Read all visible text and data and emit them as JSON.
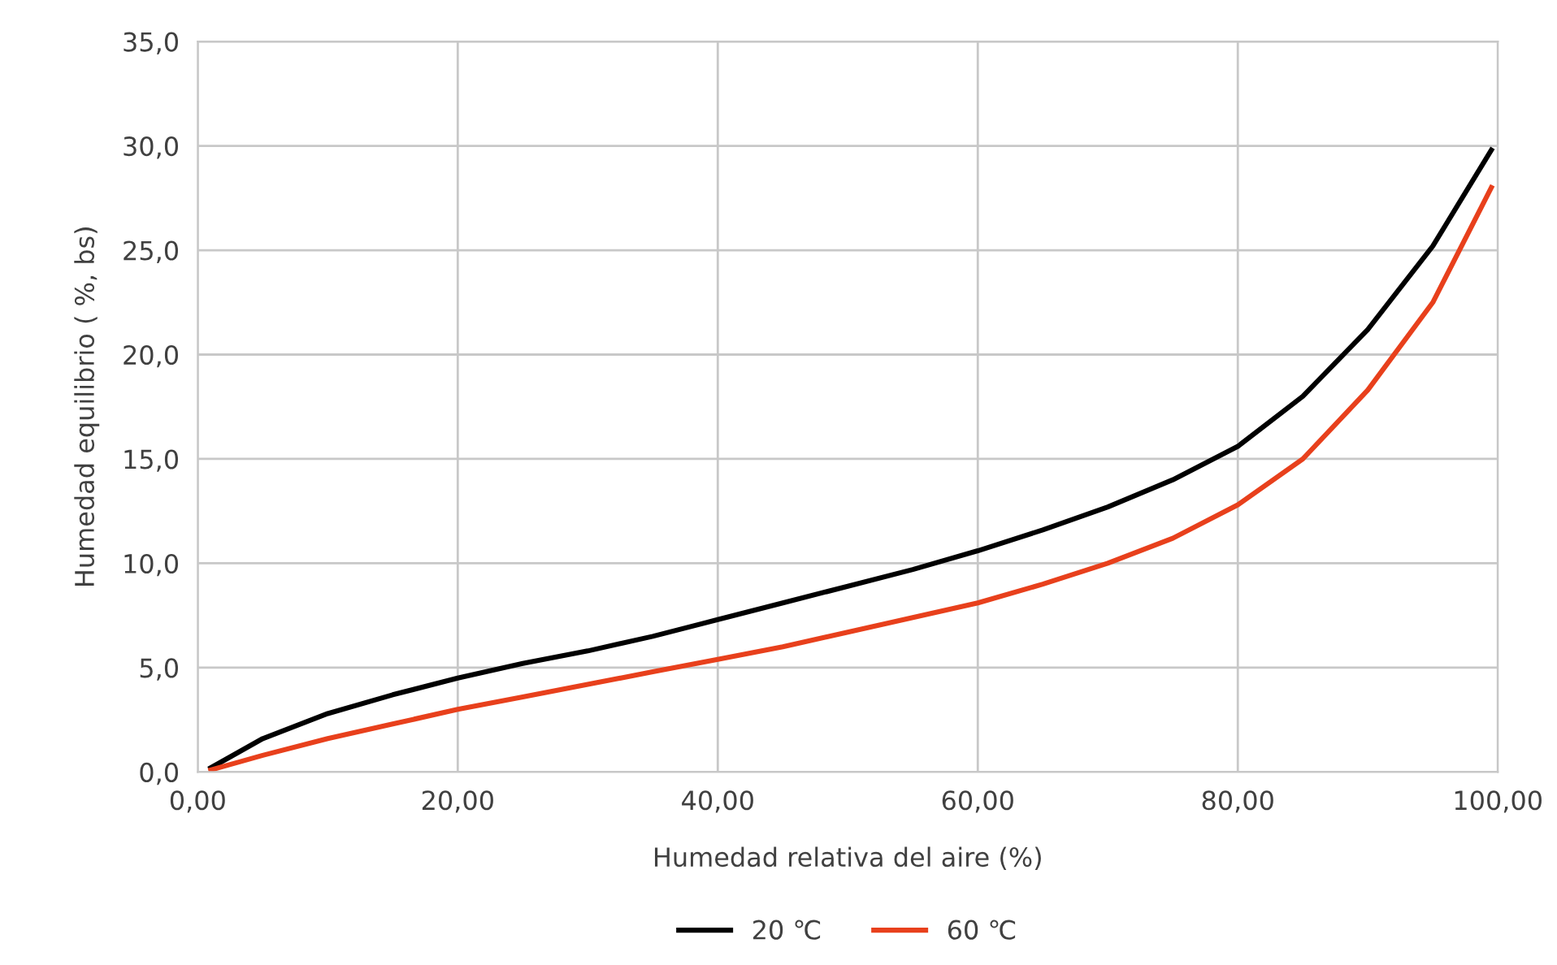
{
  "chart_data": {
    "type": "line",
    "xlabel": "Humedad relativa del aire (%)",
    "ylabel": "Humedad equilibrio ( %, bs)",
    "xlim": [
      0,
      100
    ],
    "ylim": [
      0,
      35
    ],
    "xticks": [
      {
        "value": 0,
        "label": "0,00"
      },
      {
        "value": 20,
        "label": "20,00"
      },
      {
        "value": 40,
        "label": "40,00"
      },
      {
        "value": 60,
        "label": "60,00"
      },
      {
        "value": 80,
        "label": "80,00"
      },
      {
        "value": 100,
        "label": "100,00"
      }
    ],
    "yticks": [
      {
        "value": 0,
        "label": "0,0"
      },
      {
        "value": 5,
        "label": "5,0"
      },
      {
        "value": 10,
        "label": "10,0"
      },
      {
        "value": 15,
        "label": "15,0"
      },
      {
        "value": 20,
        "label": "20,0"
      },
      {
        "value": 25,
        "label": "25,0"
      },
      {
        "value": 30,
        "label": "30,0"
      },
      {
        "value": 35,
        "label": "35,0"
      }
    ],
    "grid": true,
    "legend": "bottom",
    "marker": "none",
    "line_style": "solid",
    "x": [
      1,
      5,
      10,
      15,
      20,
      25,
      30,
      35,
      40,
      45,
      50,
      55,
      60,
      65,
      70,
      75,
      80,
      85,
      90,
      95,
      99.5
    ],
    "series": [
      {
        "name": "20 ℃",
        "color": "#000000",
        "values": [
          0.2,
          1.6,
          2.8,
          3.7,
          4.5,
          5.2,
          5.8,
          6.5,
          7.3,
          8.1,
          8.9,
          9.7,
          10.6,
          11.6,
          12.7,
          14.0,
          15.6,
          18.0,
          21.2,
          25.2,
          29.8
        ]
      },
      {
        "name": "60 ℃",
        "color": "#e8401c",
        "values": [
          0.1,
          0.8,
          1.6,
          2.3,
          3.0,
          3.6,
          4.2,
          4.8,
          5.4,
          6.0,
          6.7,
          7.4,
          8.1,
          9.0,
          10.0,
          11.2,
          12.8,
          15.0,
          18.3,
          22.5,
          28.0
        ]
      }
    ]
  }
}
